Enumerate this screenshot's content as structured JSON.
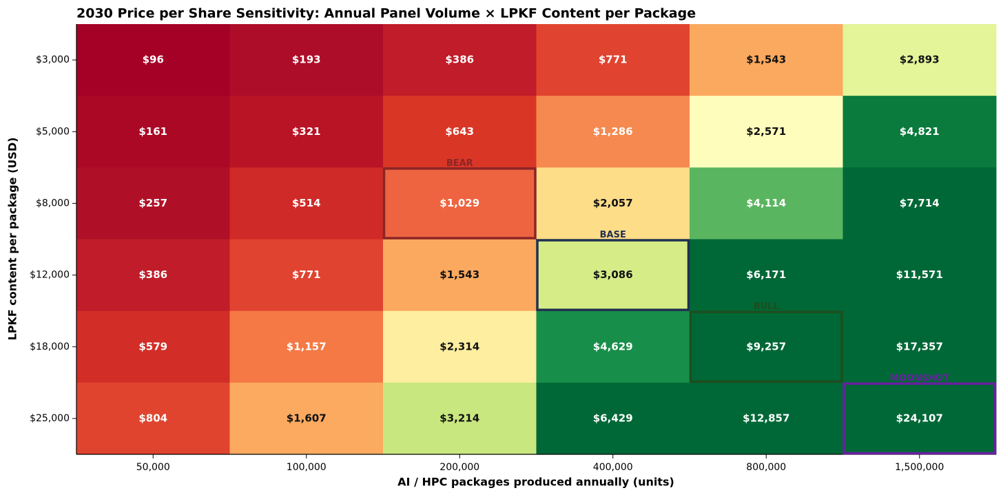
{
  "chart_data": {
    "type": "heatmap",
    "title": "2030 Price per Share Sensitivity: Annual Panel Volume × LPKF Content per Package",
    "x_label": "AI / HPC packages produced annually (units)",
    "y_label": "LPKF content per package (USD)",
    "x_categories": [
      "50,000",
      "100,000",
      "200,000",
      "400,000",
      "800,000",
      "1,500,000"
    ],
    "y_categories": [
      "$3,000",
      "$5,000",
      "$8,000",
      "$12,000",
      "$18,000",
      "$25,000"
    ],
    "values": [
      [
        96,
        193,
        386,
        771,
        1543,
        2893
      ],
      [
        161,
        321,
        643,
        1286,
        2571,
        4821
      ],
      [
        257,
        514,
        1029,
        2057,
        4114,
        7714
      ],
      [
        386,
        771,
        1543,
        3086,
        6171,
        11571
      ],
      [
        579,
        1157,
        2314,
        4629,
        9257,
        17357
      ],
      [
        804,
        1607,
        3214,
        6429,
        12857,
        24107
      ]
    ],
    "value_labels": [
      [
        "$96",
        "$193",
        "$386",
        "$771",
        "$1,543",
        "$2,893"
      ],
      [
        "$161",
        "$321",
        "$643",
        "$1,286",
        "$2,571",
        "$4,821"
      ],
      [
        "$257",
        "$514",
        "$1,029",
        "$2,057",
        "$4,114",
        "$7,714"
      ],
      [
        "$386",
        "$771",
        "$1,543",
        "$3,086",
        "$6,171",
        "$11,571"
      ],
      [
        "$579",
        "$1,157",
        "$2,314",
        "$4,629",
        "$9,257",
        "$17,357"
      ],
      [
        "$804",
        "$1,607",
        "$3,214",
        "$6,429",
        "$12,857",
        "$24,107"
      ]
    ],
    "colors": [
      [
        "#a50026",
        "#ad0d29",
        "#c01c29",
        "#e0432f",
        "#fba95f",
        "#e3f499"
      ],
      [
        "#ab0826",
        "#b91326",
        "#da3626",
        "#f5894f",
        "#fefdbc",
        "#0a7a3d"
      ],
      [
        "#b01027",
        "#cf2a27",
        "#ee6440",
        "#fddd88",
        "#5ab560",
        "#006837"
      ],
      [
        "#c01c29",
        "#e0432f",
        "#fba95f",
        "#d6ec87",
        "#006837",
        "#006837"
      ],
      [
        "#d22e27",
        "#f47945",
        "#feeea0",
        "#178f4a",
        "#006837",
        "#006837"
      ],
      [
        "#e0442f",
        "#fbaa60",
        "#c9e77f",
        "#006837",
        "#006837",
        "#006837"
      ]
    ],
    "annotations": [
      {
        "label": "BEAR",
        "x": "200,000",
        "y": "$8,000",
        "color": "#8b2525"
      },
      {
        "label": "BASE",
        "x": "400,000",
        "y": "$12,000",
        "color": "#1f3050"
      },
      {
        "label": "BULL",
        "x": "800,000",
        "y": "$18,000",
        "color": "#1e4d1e"
      },
      {
        "label": "MOONSHOT",
        "x": "1,500,000",
        "y": "$25,000",
        "color": "#6a1fa0"
      }
    ]
  }
}
